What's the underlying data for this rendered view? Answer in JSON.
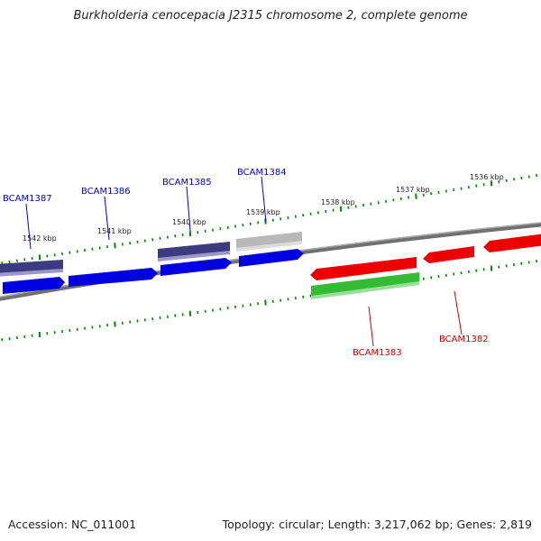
{
  "title": "Burkholderia cenocepacia J2315 chromosome 2, complete genome",
  "footer": {
    "accession": "Accession: NC_011001",
    "topology": "Topology: circular; Length: 3,217,062 bp; Genes: 2,819"
  },
  "colors": {
    "forward_gene": "#0000e0",
    "forward_dark": "#3d3a80",
    "forward_grey": "#b8b8b8",
    "reverse_gene": "#ee0000",
    "reverse_green": "#33bb33",
    "backbone": "#808080",
    "ticks": "#008800",
    "label_blue": "#0000cc",
    "label_red": "#cc0000"
  },
  "scale_labels": [
    "1542 kbp",
    "1541 kbp",
    "1540 kbp",
    "1539 kbp",
    "1538 kbp",
    "1537 kbp",
    "1536 kbp"
  ],
  "gene_labels": {
    "forward": [
      "BCAM1387",
      "BCAM1386",
      "BCAM1385",
      "BCAM1384"
    ],
    "reverse": [
      "BCAM1383",
      "BCAM1382"
    ]
  }
}
